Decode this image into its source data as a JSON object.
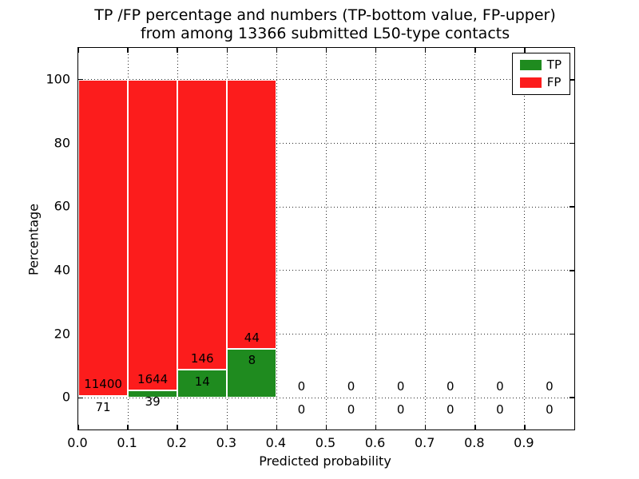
{
  "title": {
    "line1": "TP /FP percentage and numbers (TP-bottom value, FP-upper)",
    "line2": "from among 13366 submitted L50-type contacts"
  },
  "axes": {
    "xlabel": "Predicted probability",
    "ylabel": "Percentage"
  },
  "chart_data": {
    "type": "bar",
    "stacked": true,
    "title": "TP /FP percentage and numbers (TP-bottom value, FP-upper) from among 13366 submitted L50-type contacts",
    "xlabel": "Predicted probability",
    "ylabel": "Percentage",
    "total_submitted": 13366,
    "xlim": [
      0.0,
      1.0
    ],
    "ylim": [
      -10,
      110
    ],
    "grid": "dotted",
    "legend_position": "upper right",
    "bin_width": 0.1,
    "x_ticks": [
      0.0,
      0.1,
      0.2,
      0.3,
      0.4,
      0.5,
      0.6,
      0.7,
      0.8,
      0.9
    ],
    "x_tick_labels": [
      "0.0",
      "0.1",
      "0.2",
      "0.3",
      "0.4",
      "0.5",
      "0.6",
      "0.7",
      "0.8",
      "0.9"
    ],
    "y_ticks": [
      0,
      20,
      40,
      60,
      80,
      100
    ],
    "y_tick_labels": [
      "0",
      "20",
      "40",
      "60",
      "80",
      "100"
    ],
    "series": [
      {
        "name": "TP",
        "color": "#1f8b1f"
      },
      {
        "name": "FP",
        "color": "#fc1c1c"
      }
    ],
    "bins": [
      {
        "x_start": 0.0,
        "tp": 71,
        "fp": 11400
      },
      {
        "x_start": 0.1,
        "tp": 39,
        "fp": 1644
      },
      {
        "x_start": 0.2,
        "tp": 14,
        "fp": 146
      },
      {
        "x_start": 0.3,
        "tp": 8,
        "fp": 44
      },
      {
        "x_start": 0.4,
        "tp": 0,
        "fp": 0
      },
      {
        "x_start": 0.5,
        "tp": 0,
        "fp": 0
      },
      {
        "x_start": 0.6,
        "tp": 0,
        "fp": 0
      },
      {
        "x_start": 0.7,
        "tp": 0,
        "fp": 0
      },
      {
        "x_start": 0.8,
        "tp": 0,
        "fp": 0
      },
      {
        "x_start": 0.9,
        "tp": 0,
        "fp": 0
      }
    ],
    "label_offset_pct": 3.6
  }
}
